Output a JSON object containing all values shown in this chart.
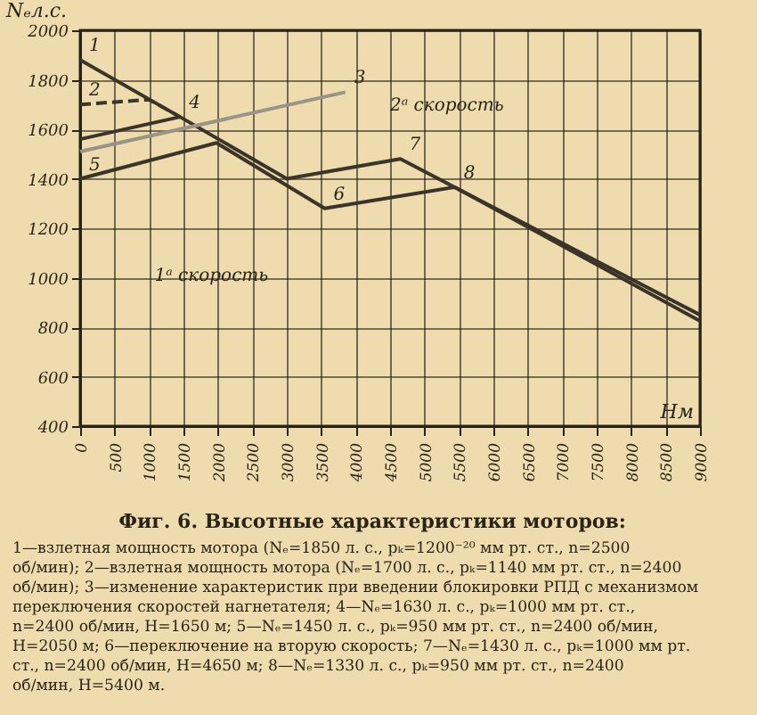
{
  "chart_data": {
    "type": "line",
    "title": "Фиг. 6. Высотные характеристики моторов:",
    "xlabel": "Hм",
    "ylabel": "Nₑл.с.",
    "xlim": [
      0,
      9000
    ],
    "xticks": [
      0,
      500,
      1000,
      1500,
      2000,
      2500,
      3000,
      3500,
      4000,
      4500,
      5000,
      5500,
      6000,
      6500,
      7000,
      7500,
      8000,
      8500,
      9000
    ],
    "ylim": [
      400,
      2000
    ],
    "yticks": [
      400,
      600,
      800,
      1000,
      1200,
      1400,
      1600,
      1800,
      2000
    ],
    "grid": true,
    "marker": "none",
    "series": [
      {
        "color": "#3a3528",
        "x": [
          0,
          1450,
          3000,
          4650,
          9000
        ],
        "values": [
          1560,
          1650,
          1400,
          1480,
          850
        ],
        "line_style": "solid"
      },
      {
        "color": "#3a3528",
        "x": [
          0,
          1980,
          3550,
          5440,
          9000
        ],
        "values": [
          1400,
          1545,
          1280,
          1366,
          825
        ],
        "line_style": "solid"
      },
      {
        "color": "#3a3528",
        "x": [
          0,
          1450
        ],
        "values": [
          1880,
          1650
        ],
        "line_style": "solid"
      },
      {
        "color": "#3a3528",
        "x": [
          0,
          1000,
          1450
        ],
        "values": [
          1700,
          1720,
          1650
        ],
        "line_style": "dashed"
      },
      {
        "color": "#9a9486",
        "x": [
          0,
          3850
        ],
        "values": [
          1510,
          1750
        ],
        "line_style": "solid"
      }
    ],
    "annotations": [
      {
        "text": "1",
        "x": 0,
        "y": 1880
      },
      {
        "text": "2",
        "x": 0,
        "y": 1700
      },
      {
        "text": "3",
        "x": 3850,
        "y": 1750
      },
      {
        "text": "4",
        "x": 1450,
        "y": 1650
      },
      {
        "text": "5",
        "x": 0,
        "y": 1400
      },
      {
        "text": "6",
        "x": 3550,
        "y": 1280
      },
      {
        "text": "7",
        "x": 4650,
        "y": 1480
      },
      {
        "text": "8",
        "x": 5440,
        "y": 1366
      },
      "1ᵃ скорость",
      "2ᵃ скорость",
      "1—взлетная мощность мотора (Nₑ=1850 л. с., pₖ=1200⁻²⁰ мм рт. ст., n=2500 об/мин); 2—взлетная мощность мотора (Nₑ=1700 л. с., pₖ=1140 мм рт. ст., n=2400 об/мин); 3—изменение характеристик при введении блокировки РПД с механизмом переключения скоростей нагнетателя; 4—Nₑ=1630 л. с., pₖ=1000 мм рт. ст., n=2400 об/мин, H=1650 м; 5—Nₑ=1450 л. с., pₖ=950 мм рт. ст., n=2400 об/мин, H=2050 м; 6—переключение на вторую скорость; 7—Nₑ=1430 л. с., pₖ=1000 мм рт. ст., n=2400 об/мин, H=4650 м; 8—Nₑ=1330 л. с., pₖ=950 мм рт. ст., n=2400 об/мин, H=5400 м."
    ]
  }
}
